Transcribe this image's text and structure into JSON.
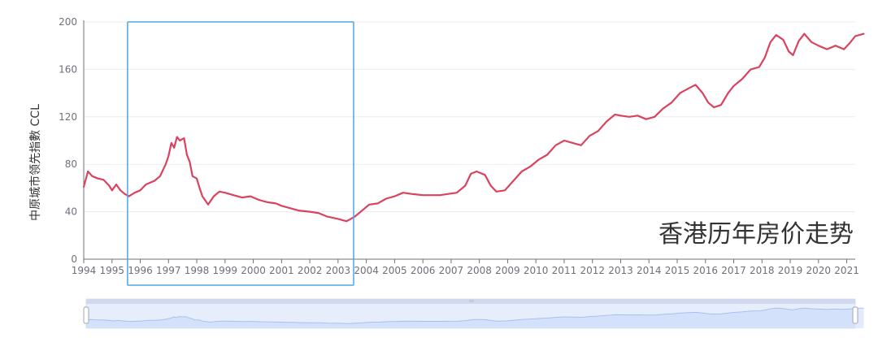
{
  "chart_data": {
    "type": "line",
    "title": "香港历年房价走势",
    "ylabel": "中原城市领先指數 CCL",
    "xlabel": "",
    "ylim": [
      0,
      200
    ],
    "xlim": [
      1994,
      2021.3
    ],
    "y_ticks": [
      0,
      40,
      80,
      120,
      160,
      200
    ],
    "x_ticks": [
      "1994",
      "1995",
      "1996",
      "1997",
      "1998",
      "1999",
      "2000",
      "2001",
      "2002",
      "2003",
      "2004",
      "2005",
      "2006",
      "2007",
      "2008",
      "2009",
      "2010",
      "2011",
      "2012",
      "2013",
      "2014",
      "2015",
      "2016",
      "2017",
      "2018",
      "2019",
      "2020",
      "2021"
    ],
    "grid": true,
    "series": [
      {
        "color": "#d9435e",
        "points": [
          [
            1994.0,
            61
          ],
          [
            1994.15,
            74
          ],
          [
            1994.3,
            70
          ],
          [
            1994.5,
            68
          ],
          [
            1994.7,
            67
          ],
          [
            1994.9,
            62
          ],
          [
            1995.0,
            58
          ],
          [
            1995.15,
            63
          ],
          [
            1995.3,
            58
          ],
          [
            1995.45,
            55
          ],
          [
            1995.6,
            53
          ],
          [
            1995.8,
            56
          ],
          [
            1996.0,
            58
          ],
          [
            1996.2,
            63
          ],
          [
            1996.5,
            66
          ],
          [
            1996.7,
            70
          ],
          [
            1996.9,
            80
          ],
          [
            1997.0,
            87
          ],
          [
            1997.1,
            98
          ],
          [
            1997.2,
            94
          ],
          [
            1997.3,
            103
          ],
          [
            1997.4,
            100
          ],
          [
            1997.55,
            102
          ],
          [
            1997.65,
            88
          ],
          [
            1997.75,
            82
          ],
          [
            1997.85,
            70
          ],
          [
            1998.0,
            68
          ],
          [
            1998.1,
            60
          ],
          [
            1998.2,
            53
          ],
          [
            1998.4,
            46
          ],
          [
            1998.6,
            53
          ],
          [
            1998.8,
            57
          ],
          [
            1999.0,
            56
          ],
          [
            1999.3,
            54
          ],
          [
            1999.6,
            52
          ],
          [
            1999.9,
            53
          ],
          [
            2000.2,
            50
          ],
          [
            2000.5,
            48
          ],
          [
            2000.8,
            47
          ],
          [
            2001.0,
            45
          ],
          [
            2001.3,
            43
          ],
          [
            2001.6,
            41
          ],
          [
            2002.0,
            40
          ],
          [
            2002.3,
            39
          ],
          [
            2002.6,
            36
          ],
          [
            2003.0,
            34
          ],
          [
            2003.3,
            32
          ],
          [
            2003.6,
            36
          ],
          [
            2003.9,
            42
          ],
          [
            2004.1,
            46
          ],
          [
            2004.4,
            47
          ],
          [
            2004.7,
            51
          ],
          [
            2005.0,
            53
          ],
          [
            2005.3,
            56
          ],
          [
            2005.6,
            55
          ],
          [
            2006.0,
            54
          ],
          [
            2006.3,
            54
          ],
          [
            2006.6,
            54
          ],
          [
            2006.9,
            55
          ],
          [
            2007.2,
            56
          ],
          [
            2007.5,
            62
          ],
          [
            2007.7,
            72
          ],
          [
            2007.9,
            74
          ],
          [
            2008.2,
            71
          ],
          [
            2008.4,
            62
          ],
          [
            2008.6,
            57
          ],
          [
            2008.9,
            58
          ],
          [
            2009.2,
            66
          ],
          [
            2009.5,
            74
          ],
          [
            2009.8,
            78
          ],
          [
            2010.1,
            84
          ],
          [
            2010.4,
            88
          ],
          [
            2010.7,
            96
          ],
          [
            2011.0,
            100
          ],
          [
            2011.3,
            98
          ],
          [
            2011.6,
            96
          ],
          [
            2011.9,
            104
          ],
          [
            2012.2,
            108
          ],
          [
            2012.5,
            116
          ],
          [
            2012.8,
            122
          ],
          [
            2013.0,
            121
          ],
          [
            2013.3,
            120
          ],
          [
            2013.6,
            121
          ],
          [
            2013.9,
            118
          ],
          [
            2014.2,
            120
          ],
          [
            2014.5,
            127
          ],
          [
            2014.8,
            132
          ],
          [
            2015.1,
            140
          ],
          [
            2015.4,
            144
          ],
          [
            2015.65,
            147
          ],
          [
            2015.9,
            140
          ],
          [
            2016.1,
            132
          ],
          [
            2016.3,
            128
          ],
          [
            2016.55,
            130
          ],
          [
            2016.8,
            140
          ],
          [
            2017.0,
            146
          ],
          [
            2017.3,
            152
          ],
          [
            2017.6,
            160
          ],
          [
            2017.9,
            162
          ],
          [
            2018.1,
            170
          ],
          [
            2018.3,
            183
          ],
          [
            2018.5,
            189
          ],
          [
            2018.75,
            185
          ],
          [
            2018.95,
            175
          ],
          [
            2019.1,
            172
          ],
          [
            2019.3,
            184
          ],
          [
            2019.5,
            190
          ],
          [
            2019.75,
            183
          ],
          [
            2020.0,
            180
          ],
          [
            2020.3,
            177
          ],
          [
            2020.6,
            180
          ],
          [
            2020.9,
            177
          ],
          [
            2021.1,
            182
          ],
          [
            2021.3,
            188
          ],
          [
            2021.6,
            190
          ]
        ]
      }
    ],
    "highlight_box": {
      "x_range": [
        1995.55,
        2003.55
      ]
    },
    "colors": {
      "line": "#d9435e",
      "axis": "#6e7079",
      "grid": "#e9ebf0",
      "highlight": "#4aa8e4",
      "zoom_fill": "#e2eafb",
      "zoom_stroke": "#aec4ee",
      "zoom_track": "#dde1ea"
    }
  }
}
